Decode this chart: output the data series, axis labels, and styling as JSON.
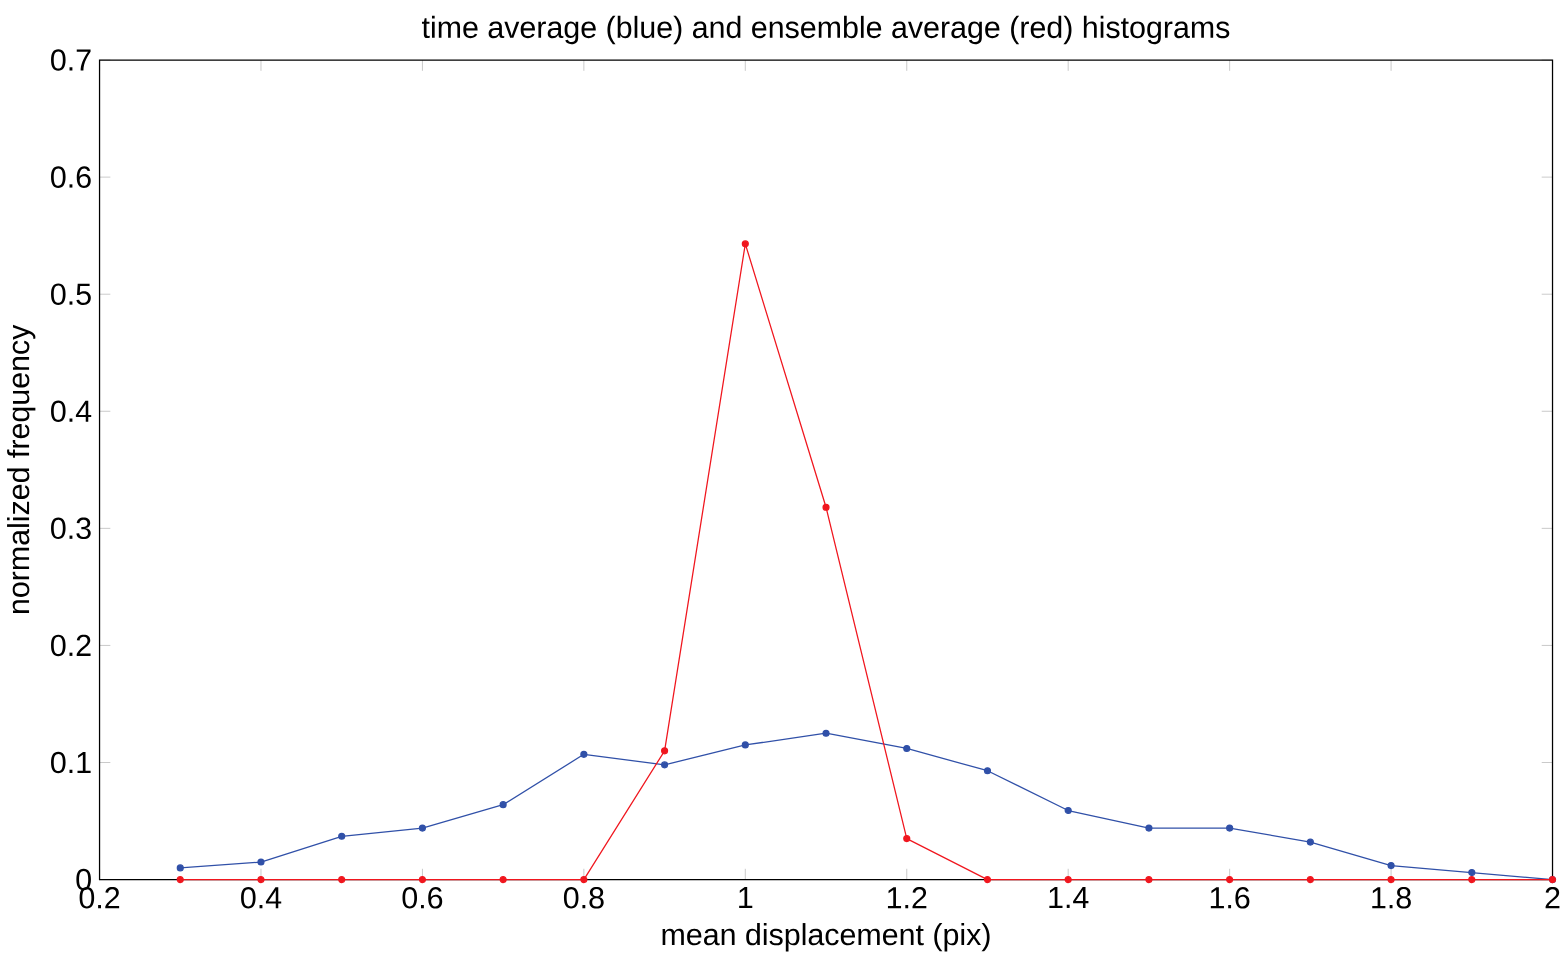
{
  "chart_data": {
    "type": "line",
    "title": "time average (blue) and ensemble average (red) histograms",
    "xlabel": "mean displacement (pix)",
    "ylabel": "normalized frequency",
    "x": [
      0.3,
      0.4,
      0.5,
      0.6,
      0.7,
      0.8,
      0.9,
      1.0,
      1.1,
      1.2,
      1.3,
      1.4,
      1.5,
      1.6,
      1.7,
      1.8,
      1.9,
      2.0
    ],
    "series": [
      {
        "color": "#3050a8",
        "values": [
          0.01,
          0.015,
          0.037,
          0.044,
          0.064,
          0.107,
          0.098,
          0.115,
          0.125,
          0.112,
          0.093,
          0.059,
          0.044,
          0.044,
          0.032,
          0.012,
          0.006,
          0
        ]
      },
      {
        "color": "#f0161e",
        "values": [
          0,
          0,
          0,
          0,
          0,
          0,
          0.11,
          0.543,
          0.318,
          0.035,
          0,
          0,
          0,
          0,
          0,
          0,
          0,
          0
        ]
      }
    ],
    "xlim": [
      0.2,
      2
    ],
    "ylim": [
      0,
      0.7
    ],
    "xticks": [
      0.2,
      0.4,
      0.6,
      0.8,
      1,
      1.2,
      1.4,
      1.6,
      1.8,
      2
    ],
    "yticks": [
      0,
      0.1,
      0.2,
      0.3,
      0.4,
      0.5,
      0.6,
      0.7
    ],
    "marker": "circle"
  }
}
